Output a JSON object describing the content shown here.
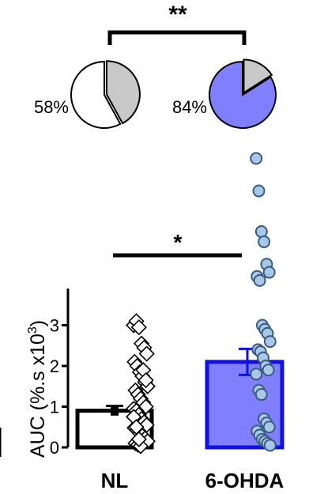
{
  "chart_data": [
    {
      "type": "pie",
      "groups": [
        {
          "name": "NL",
          "percent_label": "58%",
          "slices": [
            {
              "value": 58,
              "color": "#ffffff"
            },
            {
              "value": 42,
              "color": "#c8c8c8"
            }
          ]
        },
        {
          "name": "6-OHDA",
          "percent_label": "84%",
          "slices": [
            {
              "value": 84,
              "color": "#8080ff"
            },
            {
              "value": 16,
              "color": "#c8c8c8"
            }
          ]
        }
      ],
      "significance": "**"
    },
    {
      "type": "bar",
      "categories": [
        "NL",
        "6-OHDA"
      ],
      "ylabel": "AUC (%.s x10",
      "ylabel_sup": "3",
      "ylabel_close": ")",
      "ylim": [
        0,
        3.9
      ],
      "yticks": [
        0,
        1,
        2,
        3
      ],
      "yticks_labels": [
        "0",
        "1",
        "2",
        "3"
      ],
      "significance": "*",
      "series": [
        {
          "name": "NL",
          "value": 0.9,
          "sem": 0.12,
          "fill": "#ffffff",
          "edge": "#000000",
          "marker": "diamond",
          "points": [
            3.0,
            3.1,
            2.95,
            2.55,
            2.45,
            2.3,
            2.1,
            2.0,
            1.85,
            1.75,
            1.6,
            1.5,
            1.4,
            1.3,
            1.2,
            1.1,
            1.0,
            0.95,
            0.9,
            0.8,
            0.7,
            0.62,
            0.55,
            0.48,
            0.42,
            0.35,
            0.28,
            0.22,
            0.15,
            0.1,
            0.06,
            0.03,
            1.9,
            1.65,
            0.75,
            0.5,
            0.2
          ]
        },
        {
          "name": "6-OHDA",
          "value": 2.1,
          "sem": 0.32,
          "fill": "#8080ff",
          "edge": "#1010e0",
          "marker": "circle",
          "marker_fill": "#a8c8e8",
          "marker_edge": "#3a5a80",
          "points": [
            7.1,
            6.3,
            5.3,
            5.05,
            4.5,
            4.3,
            4.2,
            4.1,
            3.0,
            2.9,
            2.8,
            2.6,
            2.4,
            2.35,
            2.2,
            2.0,
            1.9,
            1.8,
            1.4,
            1.3,
            0.7,
            0.6,
            0.5,
            0.4,
            0.3,
            0.2,
            0.15,
            0.1,
            0.05
          ]
        }
      ]
    }
  ]
}
